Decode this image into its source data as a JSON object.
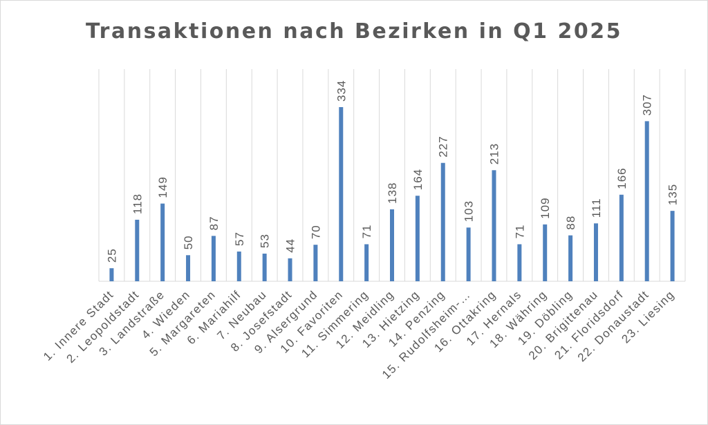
{
  "chart_data": {
    "type": "bar",
    "title": "Transaktionen nach Bezirken in Q1 2025",
    "categories": [
      "1. Innere Stadt",
      "2. Leopoldstadt",
      "3. Landstraße",
      "4. Wieden",
      "5. Margareten",
      "6. Mariahilf",
      "7. Neubau",
      "8. Josefstadt",
      "9. Alsergrund",
      "10. Favoriten",
      "11. Simmering",
      "12. Meidling",
      "13. Hietzing",
      "14. Penzing",
      "15. Rudolfsheim-…",
      "16. Ottakring",
      "17. Hernals",
      "18. Währing",
      "19. Döbling",
      "20. Brigittenau",
      "21. Floridsdorf",
      "22. Donaustadt",
      "23. Liesing"
    ],
    "values": [
      25,
      118,
      149,
      50,
      87,
      57,
      53,
      44,
      70,
      334,
      71,
      138,
      164,
      227,
      103,
      213,
      71,
      109,
      88,
      111,
      166,
      307,
      135
    ],
    "ylim": [
      0,
      360
    ],
    "grid": "vertical category gridlines",
    "legend": "none",
    "colors": {
      "bar": "#4f81bd",
      "grid": "#d9d9d9",
      "text": "#595959"
    }
  }
}
